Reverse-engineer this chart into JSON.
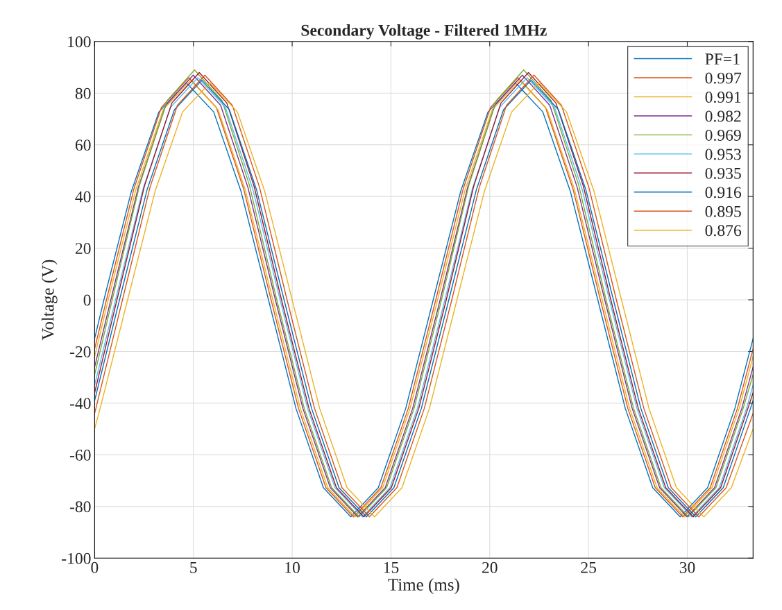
{
  "chart_data": {
    "type": "line",
    "title": "Secondary Voltage - Filtered 1MHz",
    "xlabel": "Time (ms)",
    "ylabel": "Voltage (V)",
    "xlim": [
      0,
      33.33
    ],
    "ylim": [
      -100,
      100
    ],
    "xticks": [
      0,
      5,
      10,
      15,
      20,
      25,
      30
    ],
    "yticks": [
      -100,
      -80,
      -60,
      -40,
      -20,
      0,
      20,
      40,
      60,
      80,
      100
    ],
    "grid": true,
    "legend": "top right",
    "marker": "none",
    "line_style": "solid",
    "series": [
      {
        "name": "PF=1",
        "color": "#0072bd",
        "x": [
          0,
          0.47,
          1.86,
          3.25,
          4.64,
          6.03,
          7.41,
          8.8,
          10.19,
          11.58,
          12.97,
          14.36,
          15.75,
          17.14,
          18.53,
          19.91,
          21.3,
          22.69,
          24.08,
          25.47,
          26.86,
          28.25,
          29.64,
          31.03,
          32.41,
          33.33
        ],
        "values": [
          -15,
          0,
          42,
          72.7,
          84,
          72.7,
          42,
          0,
          -42,
          -72.7,
          -84,
          -72.7,
          -42,
          0,
          42,
          72.7,
          84,
          72.7,
          42,
          0,
          -42,
          -72.7,
          -84,
          -72.7,
          -42,
          -15
        ]
      },
      {
        "name": "0.997",
        "color": "#d95319",
        "x": [
          0,
          0.6,
          1.99,
          3.38,
          4.77,
          6.16,
          7.54,
          8.93,
          10.32,
          11.71,
          13.1,
          14.49,
          15.88,
          17.27,
          18.66,
          20.04,
          21.43,
          22.82,
          24.21,
          25.6,
          26.99,
          28.38,
          29.77,
          31.16,
          32.54,
          33.33
        ],
        "values": [
          -19,
          0,
          43,
          74.5,
          86,
          74.5,
          43,
          0,
          -42,
          -72.7,
          -84,
          -72.7,
          -42,
          0,
          43,
          74.5,
          86,
          74.5,
          43,
          0,
          -42,
          -72.7,
          -84,
          -72.7,
          -42,
          -19
        ]
      },
      {
        "name": "0.991",
        "color": "#edb120",
        "x": [
          0,
          0.69,
          2.08,
          3.47,
          4.86,
          6.25,
          7.63,
          9.02,
          10.41,
          11.8,
          13.19,
          14.58,
          15.97,
          17.36,
          18.75,
          20.13,
          21.52,
          22.91,
          24.3,
          25.69,
          27.08,
          28.47,
          29.86,
          31.25,
          32.63,
          33.33
        ],
        "values": [
          -22,
          0,
          42.5,
          73.6,
          85,
          73.6,
          42.5,
          0,
          -42,
          -72.7,
          -84,
          -72.7,
          -42,
          0,
          42.5,
          73.6,
          85,
          73.6,
          42.5,
          0,
          -42,
          -72.7,
          -84,
          -72.7,
          -42,
          -22
        ]
      },
      {
        "name": "0.982",
        "color": "#7e2f8e",
        "x": [
          0,
          0.82,
          2.21,
          3.6,
          4.99,
          6.38,
          7.76,
          9.15,
          10.54,
          11.93,
          13.32,
          14.71,
          16.1,
          17.49,
          18.88,
          20.26,
          21.65,
          23.04,
          24.43,
          25.82,
          27.21,
          28.6,
          29.99,
          31.38,
          32.76,
          33.33
        ],
        "values": [
          -26,
          0,
          43.5,
          75.3,
          87,
          75.3,
          43.5,
          0,
          -42,
          -72.7,
          -84,
          -72.7,
          -42,
          0,
          43.5,
          75.3,
          87,
          75.3,
          43.5,
          0,
          -42,
          -72.7,
          -84,
          -72.7,
          -42,
          -26
        ]
      },
      {
        "name": "0.969",
        "color": "#77ac30",
        "x": [
          0,
          0.89,
          2.28,
          3.67,
          5.06,
          6.45,
          7.83,
          9.22,
          10.61,
          12.0,
          13.39,
          14.78,
          16.17,
          17.56,
          18.95,
          20.33,
          21.72,
          23.11,
          24.5,
          25.89,
          27.28,
          28.67,
          30.06,
          31.45,
          32.83,
          33.33
        ],
        "values": [
          -29,
          0,
          44.5,
          77.1,
          89,
          77.1,
          44.5,
          0,
          -42,
          -72.7,
          -84,
          -72.7,
          -42,
          0,
          44.5,
          77.1,
          89,
          77.1,
          44.5,
          0,
          -42,
          -72.7,
          -84,
          -72.7,
          -42,
          -29
        ]
      },
      {
        "name": "0.953",
        "color": "#4dbeee",
        "x": [
          0,
          1.06,
          2.45,
          3.84,
          5.23,
          6.62,
          8.0,
          9.39,
          10.78,
          12.17,
          13.56,
          14.95,
          16.34,
          17.73,
          19.12,
          20.5,
          21.89,
          23.28,
          24.67,
          26.06,
          27.45,
          28.84,
          30.23,
          31.62,
          33.0,
          33.33
        ],
        "values": [
          -33,
          0,
          43,
          74.5,
          86,
          74.5,
          43,
          0,
          -42,
          -72.7,
          -84,
          -72.7,
          -42,
          0,
          43,
          74.5,
          86,
          74.5,
          43,
          0,
          -42,
          -72.7,
          -84,
          -72.7,
          -42,
          -33
        ]
      },
      {
        "name": "0.935",
        "color": "#a2142f",
        "x": [
          0,
          1.13,
          2.52,
          3.91,
          5.3,
          6.69,
          8.07,
          9.46,
          10.85,
          12.24,
          13.63,
          15.02,
          16.41,
          17.8,
          19.19,
          20.57,
          21.96,
          23.35,
          24.74,
          26.13,
          27.52,
          28.91,
          30.3,
          31.69,
          33.07,
          33.33
        ],
        "values": [
          -36,
          0,
          44,
          76.2,
          88,
          76.2,
          44,
          0,
          -42,
          -72.7,
          -84,
          -72.7,
          -42,
          0,
          44,
          76.2,
          88,
          76.2,
          44,
          0,
          -42,
          -72.7,
          -84,
          -72.7,
          -42,
          -36
        ]
      },
      {
        "name": "0.916",
        "color": "#0072bd",
        "x": [
          0,
          1.26,
          2.65,
          4.04,
          5.43,
          6.82,
          8.2,
          9.59,
          10.98,
          12.37,
          13.76,
          15.15,
          16.54,
          17.93,
          19.32,
          20.7,
          22.09,
          23.48,
          24.87,
          26.26,
          27.65,
          29.04,
          30.43,
          31.82,
          33.2,
          33.33
        ],
        "values": [
          -39,
          0,
          42.5,
          73.6,
          85,
          73.6,
          42.5,
          0,
          -42,
          -72.7,
          -84,
          -72.7,
          -42,
          0,
          42.5,
          73.6,
          85,
          73.6,
          42.5,
          0,
          -42,
          -72.7,
          -84,
          -72.7,
          -42,
          -39
        ]
      },
      {
        "name": "0.895",
        "color": "#d95319",
        "x": [
          0,
          1.41,
          2.8,
          4.19,
          5.58,
          6.97,
          8.35,
          9.74,
          11.13,
          12.52,
          13.91,
          15.3,
          16.69,
          18.08,
          19.47,
          20.85,
          22.24,
          23.63,
          25.02,
          26.41,
          27.8,
          29.19,
          30.58,
          31.97,
          33.33
        ],
        "values": [
          -44,
          0,
          43.5,
          75.3,
          87,
          75.3,
          43.5,
          0,
          -42,
          -72.7,
          -84,
          -72.7,
          -42,
          0,
          43.5,
          75.3,
          87,
          75.3,
          43.5,
          0,
          -42,
          -72.7,
          -84,
          -72.7,
          -44
        ]
      },
      {
        "name": "0.876",
        "color": "#edb120",
        "x": [
          0,
          0.28,
          1.67,
          3.06,
          4.45,
          5.84,
          7.23,
          8.61,
          10.0,
          11.39,
          12.78,
          14.17,
          15.56,
          16.95,
          18.34,
          19.73,
          21.11,
          22.5,
          23.89,
          25.28,
          26.67,
          28.06,
          29.45,
          30.84,
          32.23,
          33.33
        ],
        "values": [
          -50,
          -42,
          0,
          42,
          72.7,
          84,
          72.7,
          42,
          0,
          -42,
          -72.7,
          -84,
          -72.7,
          -42,
          0,
          42,
          72.7,
          84,
          72.7,
          42,
          0,
          -42,
          -72.7,
          -84,
          -72.7,
          -50
        ]
      }
    ]
  }
}
